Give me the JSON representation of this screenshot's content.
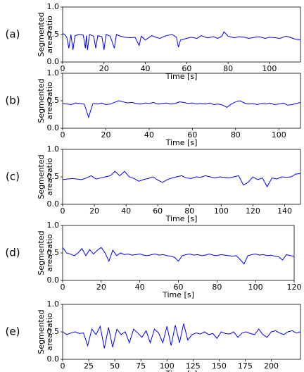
{
  "chart_data": [
    {
      "type": "line",
      "label": "(a)",
      "x_label": "Time [s]",
      "y_label": [
        "Segmented",
        "area ratio"
      ],
      "color": "#0000ff",
      "xlim": [
        0,
        115
      ],
      "ylim": [
        0,
        1
      ],
      "xticks": [
        0,
        20,
        40,
        60,
        80,
        100
      ],
      "yticks": [
        {
          "value": 0,
          "label": "0.0"
        },
        {
          "value": 0.5,
          "label": "0.5"
        },
        {
          "value": 1,
          "label": "1.0"
        }
      ],
      "x": [
        0,
        1,
        2,
        3,
        4,
        5,
        6,
        8,
        10,
        11,
        11.5,
        12,
        13,
        15,
        16,
        17,
        19,
        20,
        21,
        23,
        25,
        26,
        28,
        30,
        33,
        35,
        37,
        38,
        40,
        43,
        45,
        47,
        50,
        53,
        55,
        56,
        57,
        59,
        62,
        65,
        67,
        70,
        73,
        75,
        77,
        78,
        80,
        83,
        85,
        88,
        90,
        93,
        95,
        98,
        100,
        103,
        105,
        108,
        110,
        112,
        115
      ],
      "values": [
        0.52,
        0.5,
        0.45,
        0.25,
        0.5,
        0.22,
        0.48,
        0.5,
        0.49,
        0.25,
        0.48,
        0.22,
        0.5,
        0.47,
        0.25,
        0.48,
        0.46,
        0.22,
        0.5,
        0.47,
        0.25,
        0.5,
        0.47,
        0.45,
        0.44,
        0.45,
        0.3,
        0.47,
        0.4,
        0.48,
        0.45,
        0.43,
        0.48,
        0.5,
        0.45,
        0.27,
        0.4,
        0.42,
        0.45,
        0.43,
        0.48,
        0.44,
        0.46,
        0.43,
        0.47,
        0.55,
        0.47,
        0.44,
        0.46,
        0.45,
        0.43,
        0.45,
        0.46,
        0.43,
        0.45,
        0.44,
        0.43,
        0.47,
        0.45,
        0.42,
        0.4
      ]
    },
    {
      "type": "line",
      "label": "(b)",
      "x_label": "Time [s]",
      "y_label": [
        "Segmented",
        "area ratio"
      ],
      "color": "#0000ff",
      "xlim": [
        0,
        110
      ],
      "ylim": [
        0,
        1
      ],
      "xticks": [
        0,
        20,
        40,
        60,
        80,
        100
      ],
      "yticks": [
        {
          "value": 0,
          "label": "0.0"
        },
        {
          "value": 0.5,
          "label": "0.5"
        },
        {
          "value": 1,
          "label": "1.0"
        }
      ],
      "x": [
        0,
        2,
        4,
        6,
        8,
        10,
        12,
        14,
        16,
        18,
        20,
        22,
        24,
        26,
        28,
        30,
        32,
        34,
        36,
        38,
        40,
        42,
        44,
        46,
        48,
        50,
        52,
        54,
        56,
        58,
        60,
        62,
        64,
        66,
        68,
        70,
        72,
        74,
        76,
        78,
        80,
        82,
        84,
        86,
        88,
        90,
        92,
        94,
        96,
        98,
        100,
        102,
        104,
        106,
        108,
        110
      ],
      "values": [
        0.45,
        0.44,
        0.43,
        0.46,
        0.45,
        0.44,
        0.2,
        0.45,
        0.44,
        0.46,
        0.43,
        0.44,
        0.47,
        0.5,
        0.48,
        0.46,
        0.47,
        0.45,
        0.44,
        0.46,
        0.45,
        0.47,
        0.44,
        0.45,
        0.46,
        0.44,
        0.45,
        0.48,
        0.47,
        0.45,
        0.46,
        0.44,
        0.45,
        0.44,
        0.46,
        0.43,
        0.44,
        0.42,
        0.38,
        0.44,
        0.48,
        0.5,
        0.46,
        0.44,
        0.45,
        0.43,
        0.45,
        0.44,
        0.46,
        0.43,
        0.44,
        0.46,
        0.42,
        0.43,
        0.45,
        0.47
      ]
    },
    {
      "type": "line",
      "label": "(c)",
      "x_label": "Time [s]",
      "y_label": [
        "Segmented",
        "area ratio"
      ],
      "color": "#0000ff",
      "xlim": [
        0,
        150
      ],
      "ylim": [
        0,
        1
      ],
      "xticks": [
        0,
        20,
        40,
        60,
        80,
        100,
        120,
        140
      ],
      "yticks": [
        {
          "value": 0,
          "label": "0.0"
        },
        {
          "value": 0.5,
          "label": "0.5"
        },
        {
          "value": 1,
          "label": "1.0"
        }
      ],
      "x": [
        0,
        3,
        6,
        9,
        12,
        15,
        18,
        21,
        24,
        27,
        30,
        33,
        36,
        39,
        42,
        45,
        48,
        51,
        54,
        57,
        60,
        63,
        66,
        69,
        72,
        75,
        78,
        81,
        84,
        87,
        90,
        93,
        96,
        99,
        102,
        105,
        108,
        111,
        114,
        117,
        120,
        123,
        126,
        129,
        132,
        135,
        138,
        141,
        144,
        147,
        150
      ],
      "values": [
        0.45,
        0.46,
        0.47,
        0.46,
        0.45,
        0.48,
        0.52,
        0.46,
        0.48,
        0.5,
        0.52,
        0.6,
        0.52,
        0.6,
        0.5,
        0.47,
        0.42,
        0.45,
        0.47,
        0.5,
        0.44,
        0.4,
        0.45,
        0.48,
        0.5,
        0.52,
        0.48,
        0.47,
        0.5,
        0.49,
        0.52,
        0.5,
        0.48,
        0.5,
        0.49,
        0.48,
        0.5,
        0.52,
        0.35,
        0.4,
        0.5,
        0.45,
        0.48,
        0.32,
        0.48,
        0.46,
        0.5,
        0.49,
        0.5,
        0.55,
        0.56
      ]
    },
    {
      "type": "line",
      "label": "(d)",
      "x_label": "Time [s]",
      "y_label": [
        "Segmented",
        "area ratio"
      ],
      "color": "#0000ff",
      "xlim": [
        0,
        120
      ],
      "ylim": [
        0,
        1
      ],
      "xticks": [
        0,
        20,
        40,
        60,
        80,
        100,
        120
      ],
      "yticks": [
        {
          "value": 0,
          "label": "0.0"
        },
        {
          "value": 0.5,
          "label": "0.5"
        },
        {
          "value": 1,
          "label": "1.0"
        }
      ],
      "x": [
        0,
        2,
        4,
        6,
        8,
        10,
        12,
        14,
        16,
        18,
        20,
        22,
        24,
        26,
        28,
        30,
        32,
        34,
        36,
        38,
        40,
        42,
        44,
        46,
        48,
        50,
        52,
        54,
        56,
        58,
        60,
        62,
        64,
        66,
        68,
        70,
        72,
        74,
        76,
        78,
        80,
        82,
        84,
        86,
        88,
        90,
        92,
        94,
        96,
        98,
        100,
        102,
        104,
        106,
        108,
        110,
        112,
        114,
        116,
        118,
        120
      ],
      "values": [
        0.6,
        0.5,
        0.48,
        0.45,
        0.5,
        0.58,
        0.45,
        0.56,
        0.48,
        0.55,
        0.6,
        0.5,
        0.35,
        0.55,
        0.45,
        0.5,
        0.47,
        0.48,
        0.46,
        0.47,
        0.48,
        0.46,
        0.45,
        0.47,
        0.48,
        0.46,
        0.47,
        0.45,
        0.44,
        0.42,
        0.35,
        0.45,
        0.47,
        0.48,
        0.46,
        0.47,
        0.45,
        0.46,
        0.48,
        0.46,
        0.45,
        0.47,
        0.46,
        0.45,
        0.44,
        0.45,
        0.38,
        0.3,
        0.45,
        0.47,
        0.48,
        0.46,
        0.47,
        0.45,
        0.46,
        0.44,
        0.43,
        0.37,
        0.47,
        0.45,
        0.44
      ]
    },
    {
      "type": "line",
      "label": "(e)",
      "x_label": "Time [s]",
      "y_label": [
        "Segmented",
        "area ratio"
      ],
      "color": "#0000ff",
      "xlim": [
        0,
        228
      ],
      "ylim": [
        0,
        1
      ],
      "xticks": [
        0,
        25,
        50,
        75,
        100,
        125,
        150,
        175,
        200
      ],
      "yticks": [
        {
          "value": 0,
          "label": "0.0"
        },
        {
          "value": 0.5,
          "label": "0.5"
        },
        {
          "value": 1,
          "label": "1.0"
        }
      ],
      "x": [
        0,
        4,
        8,
        12,
        16,
        20,
        24,
        28,
        32,
        36,
        40,
        44,
        48,
        52,
        56,
        60,
        64,
        68,
        72,
        76,
        80,
        84,
        88,
        92,
        96,
        100,
        104,
        108,
        112,
        116,
        120,
        124,
        128,
        132,
        136,
        140,
        144,
        148,
        152,
        156,
        160,
        164,
        168,
        172,
        176,
        180,
        184,
        188,
        192,
        196,
        200,
        204,
        208,
        212,
        216,
        220,
        224,
        228
      ],
      "values": [
        0.5,
        0.45,
        0.48,
        0.5,
        0.47,
        0.48,
        0.25,
        0.55,
        0.45,
        0.6,
        0.2,
        0.58,
        0.22,
        0.55,
        0.45,
        0.5,
        0.3,
        0.55,
        0.48,
        0.4,
        0.52,
        0.3,
        0.55,
        0.48,
        0.3,
        0.6,
        0.25,
        0.62,
        0.3,
        0.65,
        0.35,
        0.45,
        0.48,
        0.46,
        0.5,
        0.45,
        0.47,
        0.38,
        0.5,
        0.47,
        0.46,
        0.5,
        0.4,
        0.48,
        0.5,
        0.47,
        0.45,
        0.55,
        0.45,
        0.4,
        0.5,
        0.52,
        0.48,
        0.45,
        0.5,
        0.52,
        0.48,
        0.5
      ]
    }
  ]
}
